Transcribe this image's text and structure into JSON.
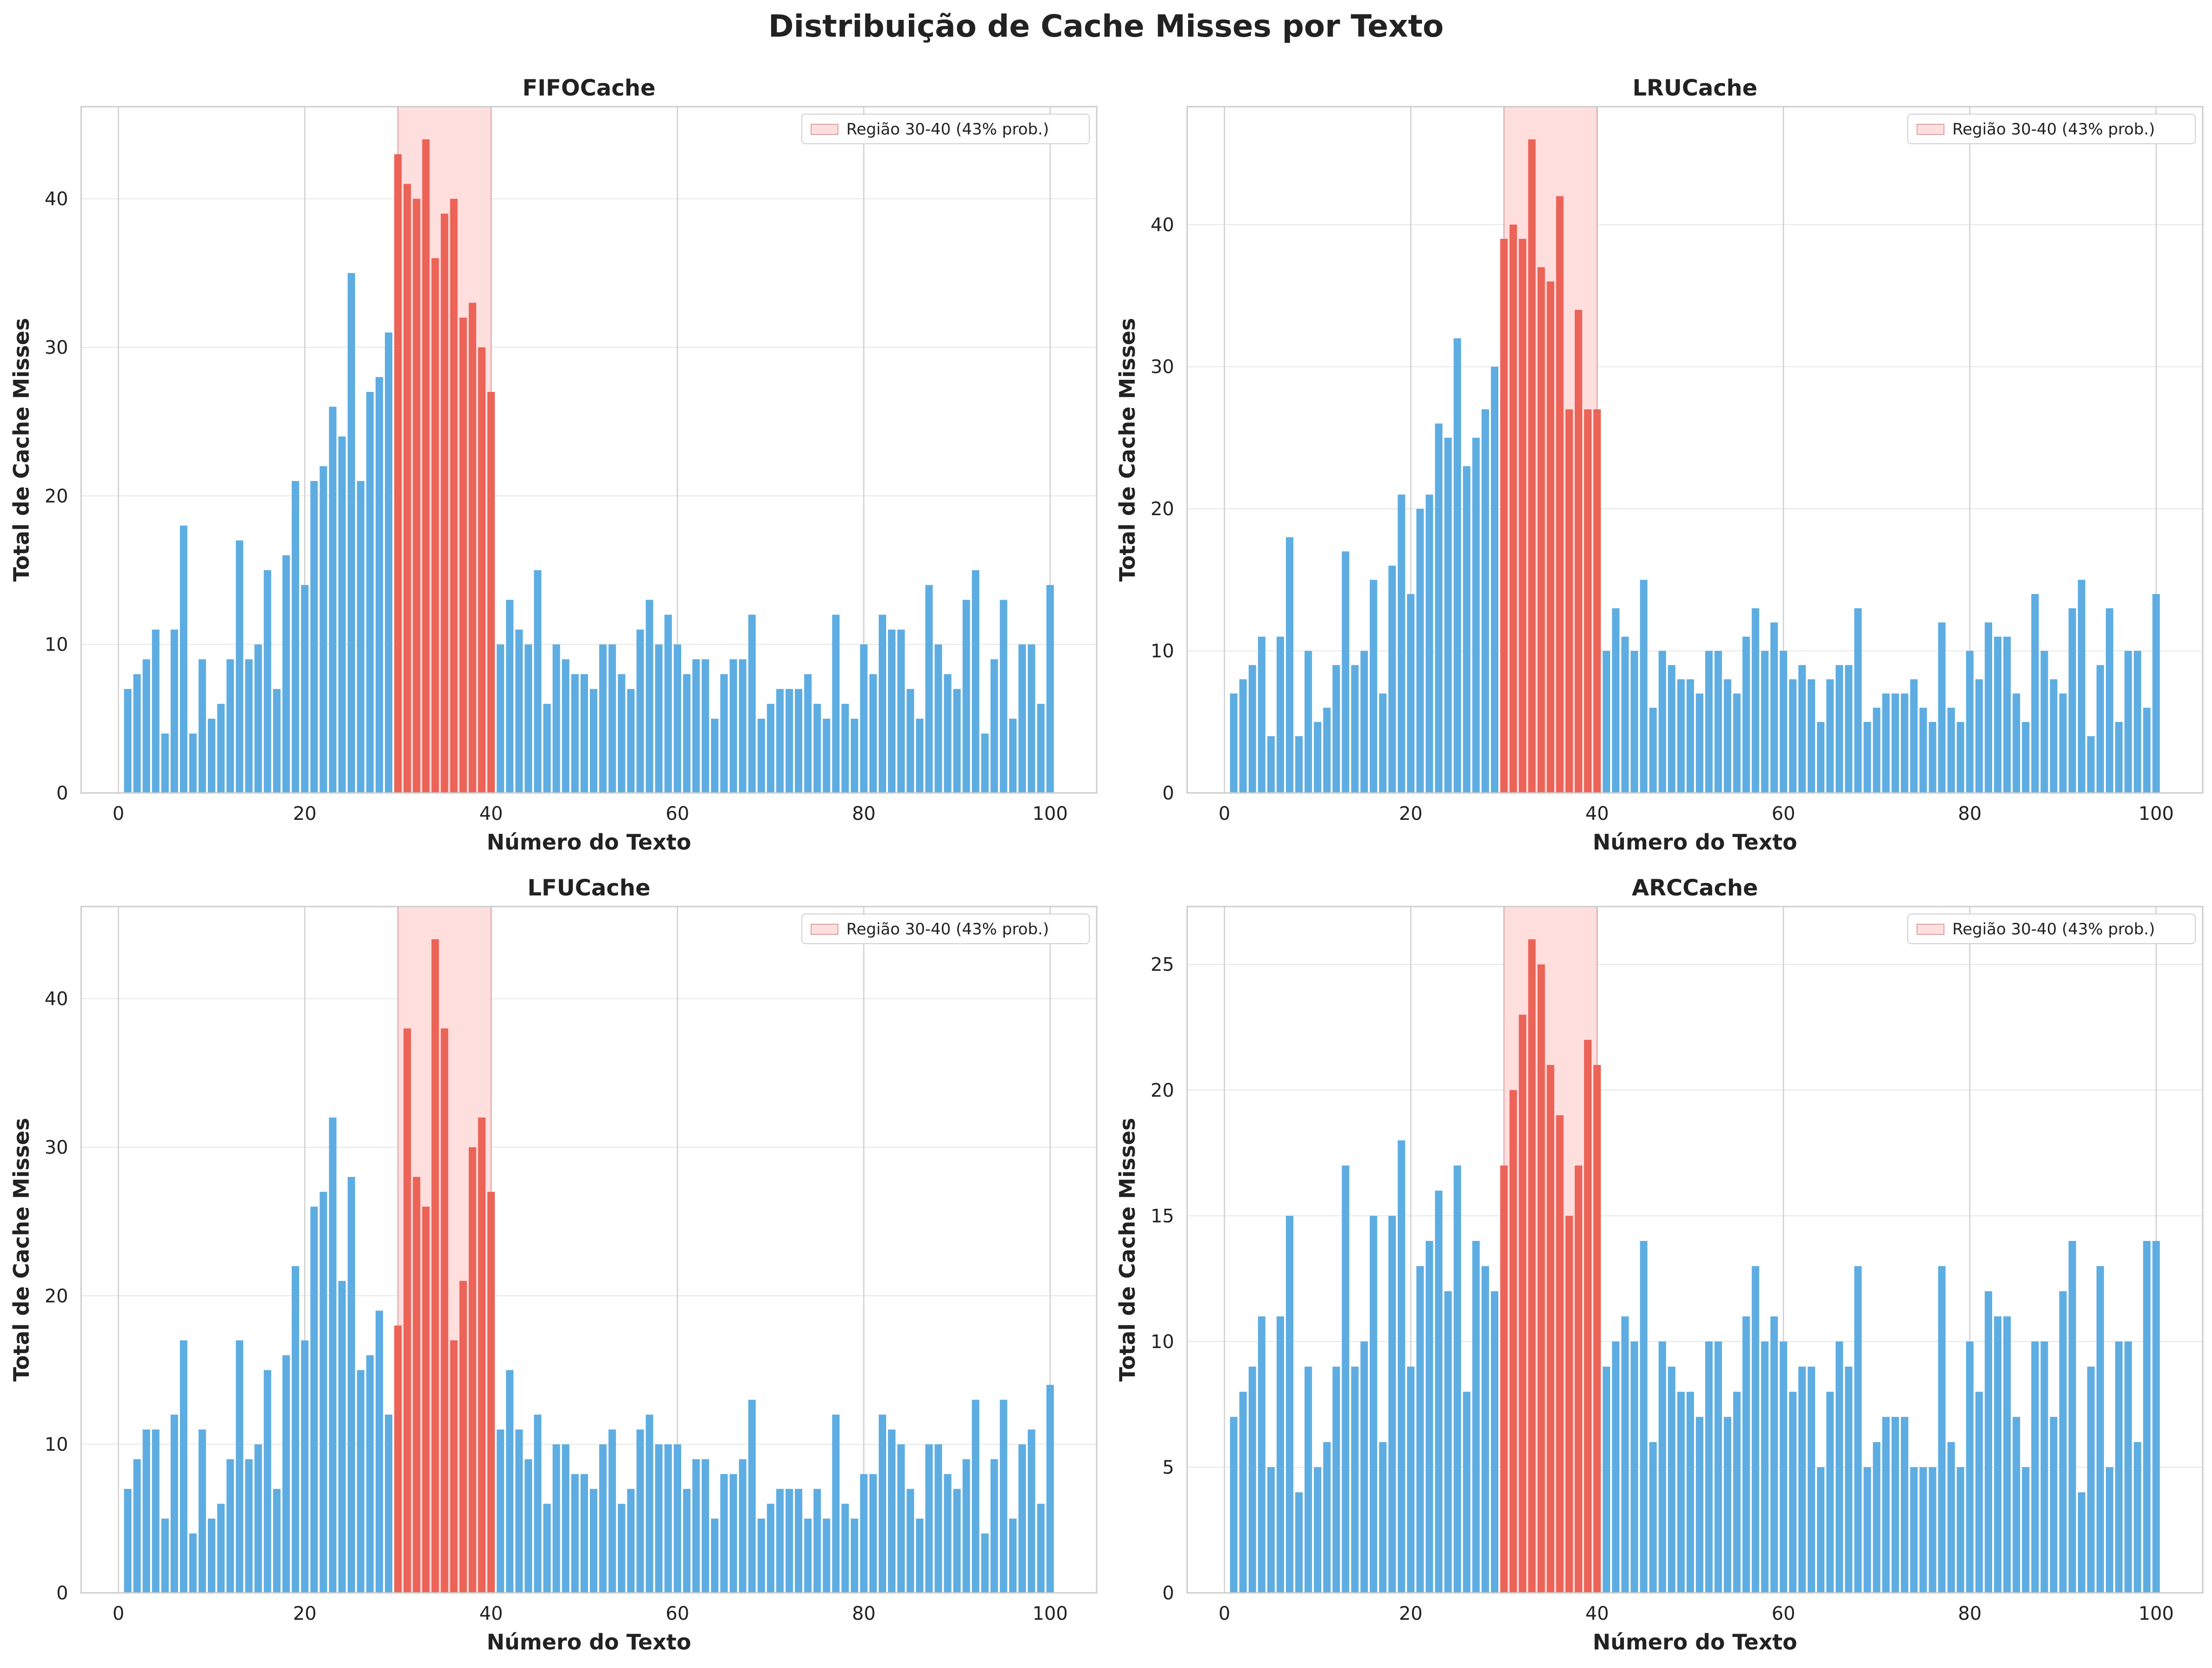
{
  "figure": {
    "title": "Distribuição de Cache Misses por Texto"
  },
  "colors": {
    "bar_default": "#5dade2",
    "bar_highlight": "#ec6357",
    "region_fill": "#ffdede",
    "grid": "#e6e6e6",
    "spine": "#cccccc"
  },
  "chart_data": [
    {
      "type": "bar",
      "title": "FIFOCache",
      "xlabel": "Número do Texto",
      "ylabel": "Total de Cache Misses",
      "xlim": [
        -4,
        105
      ],
      "ylim": [
        0,
        46.2
      ],
      "xticks": [
        0,
        20,
        40,
        60,
        80,
        100
      ],
      "yticks": [
        0,
        10,
        20,
        30,
        40
      ],
      "grid": true,
      "legend": {
        "label": "Região 30-40 (43% prob.)",
        "position": "top-right"
      },
      "highlight_region": [
        30,
        40
      ],
      "x": [
        1,
        2,
        3,
        4,
        5,
        6,
        7,
        8,
        9,
        10,
        11,
        12,
        13,
        14,
        15,
        16,
        17,
        18,
        19,
        20,
        21,
        22,
        23,
        24,
        25,
        26,
        27,
        28,
        29,
        30,
        31,
        32,
        33,
        34,
        35,
        36,
        37,
        38,
        39,
        40,
        41,
        42,
        43,
        44,
        45,
        46,
        47,
        48,
        49,
        50,
        51,
        52,
        53,
        54,
        55,
        56,
        57,
        58,
        59,
        60,
        61,
        62,
        63,
        64,
        65,
        66,
        67,
        68,
        69,
        70,
        71,
        72,
        73,
        74,
        75,
        76,
        77,
        78,
        79,
        80,
        81,
        82,
        83,
        84,
        85,
        86,
        87,
        88,
        89,
        90,
        91,
        92,
        93,
        94,
        95,
        96,
        97,
        98,
        99,
        100
      ],
      "values": [
        7,
        8,
        9,
        11,
        4,
        11,
        18,
        4,
        9,
        5,
        6,
        9,
        17,
        9,
        10,
        15,
        7,
        16,
        21,
        14,
        21,
        22,
        26,
        24,
        35,
        21,
        27,
        28,
        31,
        43,
        41,
        40,
        44,
        36,
        39,
        40,
        32,
        33,
        30,
        27,
        10,
        13,
        11,
        10,
        15,
        6,
        10,
        9,
        8,
        8,
        7,
        10,
        10,
        8,
        7,
        11,
        13,
        10,
        12,
        10,
        8,
        9,
        9,
        5,
        8,
        9,
        9,
        12,
        5,
        6,
        7,
        7,
        7,
        8,
        6,
        5,
        12,
        6,
        5,
        10,
        8,
        12,
        11,
        11,
        7,
        5,
        14,
        10,
        8,
        7,
        13,
        15,
        4,
        9,
        13,
        5,
        10,
        10,
        6,
        14
      ]
    },
    {
      "type": "bar",
      "title": "LRUCache",
      "xlabel": "Número do Texto",
      "ylabel": "Total de Cache Misses",
      "xlim": [
        -4,
        105
      ],
      "ylim": [
        0,
        48.3
      ],
      "xticks": [
        0,
        20,
        40,
        60,
        80,
        100
      ],
      "yticks": [
        0,
        10,
        20,
        30,
        40
      ],
      "grid": true,
      "legend": {
        "label": "Região 30-40 (43% prob.)",
        "position": "top-right"
      },
      "highlight_region": [
        30,
        40
      ],
      "x": [
        1,
        2,
        3,
        4,
        5,
        6,
        7,
        8,
        9,
        10,
        11,
        12,
        13,
        14,
        15,
        16,
        17,
        18,
        19,
        20,
        21,
        22,
        23,
        24,
        25,
        26,
        27,
        28,
        29,
        30,
        31,
        32,
        33,
        34,
        35,
        36,
        37,
        38,
        39,
        40,
        41,
        42,
        43,
        44,
        45,
        46,
        47,
        48,
        49,
        50,
        51,
        52,
        53,
        54,
        55,
        56,
        57,
        58,
        59,
        60,
        61,
        62,
        63,
        64,
        65,
        66,
        67,
        68,
        69,
        70,
        71,
        72,
        73,
        74,
        75,
        76,
        77,
        78,
        79,
        80,
        81,
        82,
        83,
        84,
        85,
        86,
        87,
        88,
        89,
        90,
        91,
        92,
        93,
        94,
        95,
        96,
        97,
        98,
        99,
        100
      ],
      "values": [
        7,
        8,
        9,
        11,
        4,
        11,
        18,
        4,
        10,
        5,
        6,
        9,
        17,
        9,
        10,
        15,
        7,
        16,
        21,
        14,
        20,
        21,
        26,
        25,
        32,
        23,
        25,
        27,
        30,
        39,
        40,
        39,
        46,
        37,
        36,
        42,
        27,
        34,
        27,
        27,
        10,
        13,
        11,
        10,
        15,
        6,
        10,
        9,
        8,
        8,
        7,
        10,
        10,
        8,
        7,
        11,
        13,
        10,
        12,
        10,
        8,
        9,
        8,
        5,
        8,
        9,
        9,
        13,
        5,
        6,
        7,
        7,
        7,
        8,
        6,
        5,
        12,
        6,
        5,
        10,
        8,
        12,
        11,
        11,
        7,
        5,
        14,
        10,
        8,
        7,
        13,
        15,
        4,
        9,
        13,
        5,
        10,
        10,
        6,
        14
      ]
    },
    {
      "type": "bar",
      "title": "LFUCache",
      "xlabel": "Número do Texto",
      "ylabel": "Total de Cache Misses",
      "xlim": [
        -4,
        105
      ],
      "ylim": [
        0,
        46.2
      ],
      "xticks": [
        0,
        20,
        40,
        60,
        80,
        100
      ],
      "yticks": [
        0,
        10,
        20,
        30,
        40
      ],
      "grid": true,
      "legend": {
        "label": "Região 30-40 (43% prob.)",
        "position": "top-right"
      },
      "highlight_region": [
        30,
        40
      ],
      "x": [
        1,
        2,
        3,
        4,
        5,
        6,
        7,
        8,
        9,
        10,
        11,
        12,
        13,
        14,
        15,
        16,
        17,
        18,
        19,
        20,
        21,
        22,
        23,
        24,
        25,
        26,
        27,
        28,
        29,
        30,
        31,
        32,
        33,
        34,
        35,
        36,
        37,
        38,
        39,
        40,
        41,
        42,
        43,
        44,
        45,
        46,
        47,
        48,
        49,
        50,
        51,
        52,
        53,
        54,
        55,
        56,
        57,
        58,
        59,
        60,
        61,
        62,
        63,
        64,
        65,
        66,
        67,
        68,
        69,
        70,
        71,
        72,
        73,
        74,
        75,
        76,
        77,
        78,
        79,
        80,
        81,
        82,
        83,
        84,
        85,
        86,
        87,
        88,
        89,
        90,
        91,
        92,
        93,
        94,
        95,
        96,
        97,
        98,
        99,
        100
      ],
      "values": [
        7,
        9,
        11,
        11,
        5,
        12,
        17,
        4,
        11,
        5,
        6,
        9,
        17,
        9,
        10,
        15,
        7,
        16,
        22,
        17,
        26,
        27,
        32,
        21,
        28,
        15,
        16,
        19,
        12,
        18,
        38,
        28,
        26,
        44,
        38,
        17,
        21,
        30,
        32,
        27,
        11,
        15,
        11,
        9,
        12,
        6,
        10,
        10,
        8,
        8,
        7,
        10,
        11,
        6,
        7,
        11,
        12,
        10,
        10,
        10,
        7,
        9,
        9,
        5,
        8,
        8,
        9,
        13,
        5,
        6,
        7,
        7,
        7,
        5,
        7,
        5,
        12,
        6,
        5,
        8,
        8,
        12,
        11,
        10,
        7,
        5,
        10,
        10,
        8,
        7,
        9,
        13,
        4,
        9,
        13,
        5,
        10,
        11,
        6,
        14
      ]
    },
    {
      "type": "bar",
      "title": "ARCCache",
      "xlabel": "Número do Texto",
      "ylabel": "Total de Cache Misses",
      "xlim": [
        -4,
        105
      ],
      "ylim": [
        0,
        27.3
      ],
      "xticks": [
        0,
        20,
        40,
        60,
        80,
        100
      ],
      "yticks": [
        0,
        5,
        10,
        15,
        20,
        25
      ],
      "grid": true,
      "legend": {
        "label": "Região 30-40 (43% prob.)",
        "position": "top-right"
      },
      "highlight_region": [
        30,
        40
      ],
      "x": [
        1,
        2,
        3,
        4,
        5,
        6,
        7,
        8,
        9,
        10,
        11,
        12,
        13,
        14,
        15,
        16,
        17,
        18,
        19,
        20,
        21,
        22,
        23,
        24,
        25,
        26,
        27,
        28,
        29,
        30,
        31,
        32,
        33,
        34,
        35,
        36,
        37,
        38,
        39,
        40,
        41,
        42,
        43,
        44,
        45,
        46,
        47,
        48,
        49,
        50,
        51,
        52,
        53,
        54,
        55,
        56,
        57,
        58,
        59,
        60,
        61,
        62,
        63,
        64,
        65,
        66,
        67,
        68,
        69,
        70,
        71,
        72,
        73,
        74,
        75,
        76,
        77,
        78,
        79,
        80,
        81,
        82,
        83,
        84,
        85,
        86,
        87,
        88,
        89,
        90,
        91,
        92,
        93,
        94,
        95,
        96,
        97,
        98,
        99,
        100
      ],
      "values": [
        7,
        8,
        9,
        11,
        5,
        11,
        15,
        4,
        9,
        5,
        6,
        9,
        17,
        9,
        10,
        15,
        6,
        15,
        18,
        9,
        13,
        14,
        16,
        12,
        17,
        8,
        14,
        13,
        12,
        17,
        20,
        23,
        26,
        25,
        21,
        19,
        15,
        17,
        22,
        21,
        9,
        10,
        11,
        10,
        14,
        6,
        10,
        9,
        8,
        8,
        7,
        10,
        10,
        7,
        8,
        11,
        13,
        10,
        11,
        10,
        8,
        9,
        9,
        5,
        8,
        10,
        9,
        13,
        5,
        6,
        7,
        7,
        7,
        5,
        5,
        5,
        13,
        6,
        5,
        10,
        8,
        12,
        11,
        11,
        7,
        5,
        10,
        10,
        7,
        12,
        14,
        4,
        9,
        13,
        5,
        10,
        10,
        6,
        14,
        14
      ]
    }
  ]
}
